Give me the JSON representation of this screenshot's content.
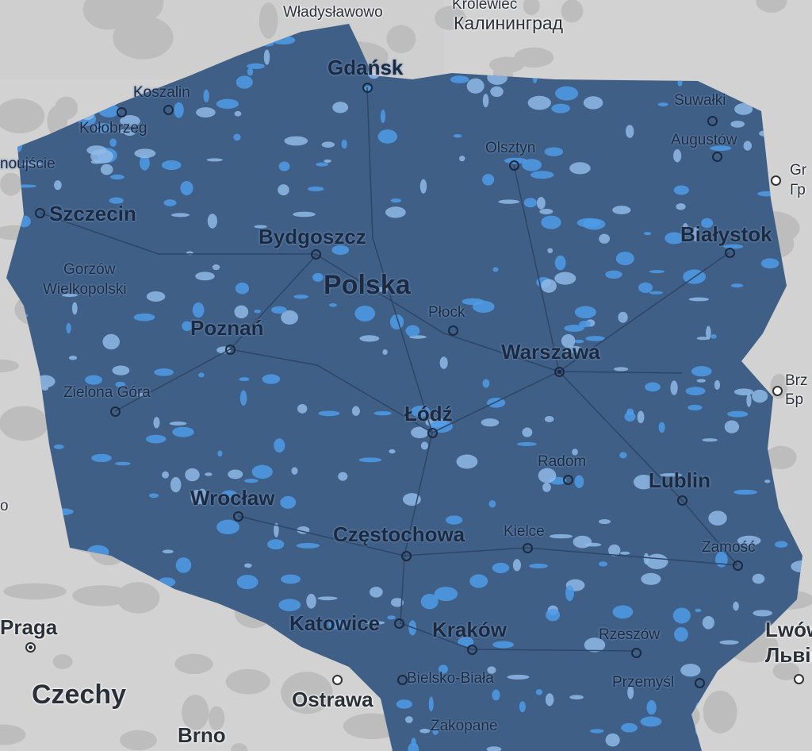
{
  "map": {
    "colors": {
      "land": "#d2d2d2",
      "sea": "#cfcfcf",
      "coverage_base": "#3f5f86",
      "coverage_light": "#8fb8e6",
      "coverage_bright": "#4d9be8",
      "roads": "#2e4566"
    },
    "labels": [
      {
        "text": "Władysławowo"
      },
      {
        "text": "Królewiec"
      },
      {
        "text": "Калининград"
      },
      {
        "text": "Gdańsk"
      },
      {
        "text": "Koszalin"
      },
      {
        "text": "Kołobrzeg"
      },
      {
        "text": "noujście"
      },
      {
        "text": "Suwałki"
      },
      {
        "text": "Augustów"
      },
      {
        "text": "Olsztyn"
      },
      {
        "text": "Gr"
      },
      {
        "text": "Гр"
      },
      {
        "text": "Szczecin"
      },
      {
        "text": "Bydgoszcz"
      },
      {
        "text": "Białystok"
      },
      {
        "text": "Gorzów"
      },
      {
        "text": "Wielkopolski"
      },
      {
        "text": "Polska"
      },
      {
        "text": "Płock"
      },
      {
        "text": "Poznań"
      },
      {
        "text": "Warszawa"
      },
      {
        "text": "Brz"
      },
      {
        "text": "Бр"
      },
      {
        "text": "Zielona Góra"
      },
      {
        "text": "Łódź"
      },
      {
        "text": "Radom"
      },
      {
        "text": "Lublin"
      },
      {
        "text": "Wrocław"
      },
      {
        "text": "o"
      },
      {
        "text": "Częstochowa"
      },
      {
        "text": "Kielce"
      },
      {
        "text": "Zamość"
      },
      {
        "text": "Praga"
      },
      {
        "text": "Katowice"
      },
      {
        "text": "Kraków"
      },
      {
        "text": "Rzeszów"
      },
      {
        "text": "Lwów"
      },
      {
        "text": "Львів"
      },
      {
        "text": "Czechy"
      },
      {
        "text": "Bielsko-Biała"
      },
      {
        "text": "Przemyśl"
      },
      {
        "text": "Ostrawa"
      },
      {
        "text": "Brno"
      },
      {
        "text": "Zakopane"
      }
    ]
  }
}
